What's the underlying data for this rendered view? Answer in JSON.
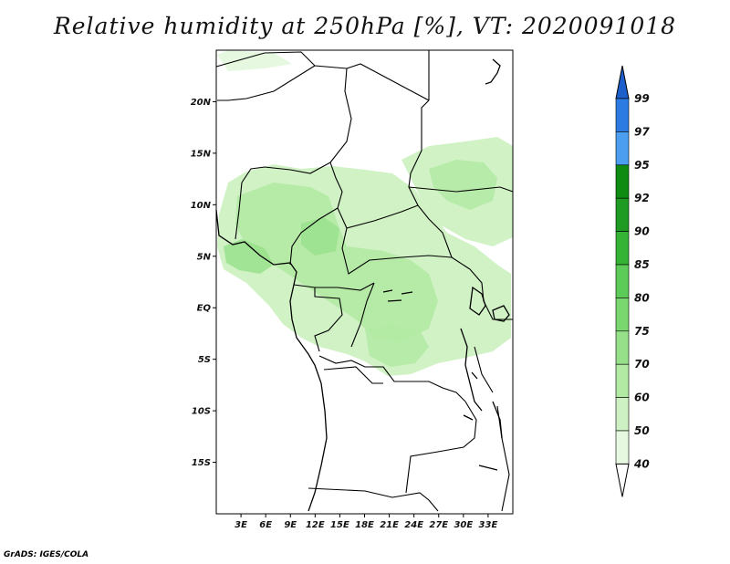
{
  "title": "Relative humidity at 250hPa [%], VT: 2020091018",
  "footer": "GrADS: IGES/COLA",
  "map": {
    "lon_range": [
      0,
      36
    ],
    "lat_range": [
      -20,
      25
    ],
    "lat_ticks": [
      {
        "value": 20,
        "label": "20N"
      },
      {
        "value": 15,
        "label": "15N"
      },
      {
        "value": 10,
        "label": "10N"
      },
      {
        "value": 5,
        "label": "5N"
      },
      {
        "value": 0,
        "label": "EQ"
      },
      {
        "value": -5,
        "label": "5S"
      },
      {
        "value": -10,
        "label": "10S"
      },
      {
        "value": -15,
        "label": "15S"
      }
    ],
    "lon_ticks": [
      {
        "value": 3,
        "label": "3E"
      },
      {
        "value": 6,
        "label": "6E"
      },
      {
        "value": 9,
        "label": "9E"
      },
      {
        "value": 12,
        "label": "12E"
      },
      {
        "value": 15,
        "label": "15E"
      },
      {
        "value": 18,
        "label": "18E"
      },
      {
        "value": 21,
        "label": "21E"
      },
      {
        "value": 24,
        "label": "24E"
      },
      {
        "value": 27,
        "label": "27E"
      },
      {
        "value": 30,
        "label": "30E"
      },
      {
        "value": 33,
        "label": "33E"
      }
    ]
  },
  "colorbar": {
    "levels": [
      "40",
      "50",
      "60",
      "70",
      "75",
      "80",
      "85",
      "90",
      "92",
      "95",
      "97",
      "99"
    ],
    "colors": [
      "#ffffff",
      "#e6f8e0",
      "#cdf1c2",
      "#b3eaa3",
      "#96e08a",
      "#7ad66f",
      "#5ccb57",
      "#34b335",
      "#1f9a22",
      "#108b12",
      "#4b9ef0",
      "#2c7be3",
      "#1f5fcc"
    ]
  }
}
